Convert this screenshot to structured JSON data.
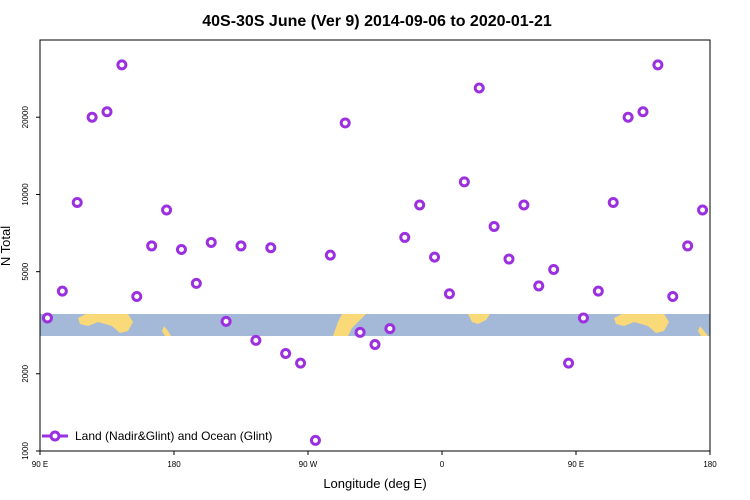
{
  "chart_data": {
    "type": "scatter",
    "title": "40S-30S June (Ver 9)   2014-09-06 to 2020-01-21",
    "xlabel": "Longitude (deg E)",
    "ylabel": "N Total",
    "xlim": [
      90,
      540
    ],
    "ylim": [
      1000,
      40000
    ],
    "yscale": "log",
    "grid": false,
    "x_ticks": [
      {
        "value": 90,
        "label": "90 E"
      },
      {
        "value": 180,
        "label": "180"
      },
      {
        "value": 270,
        "label": "90 W"
      },
      {
        "value": 360,
        "label": "0"
      },
      {
        "value": 450,
        "label": "90 E"
      },
      {
        "value": 540,
        "label": "180"
      }
    ],
    "y_ticks": [
      {
        "value": 1000,
        "label": "1000"
      },
      {
        "value": 2000,
        "label": "2000"
      },
      {
        "value": 5000,
        "label": "5000"
      },
      {
        "value": 10000,
        "label": "10000"
      },
      {
        "value": 20000,
        "label": "20000"
      }
    ],
    "series": [
      {
        "name": "Land (Nadir&Glint) and Ocean (Glint)",
        "color": "#9b30e0",
        "marker": "open-circle",
        "x": [
          95,
          105,
          115,
          125,
          135,
          145,
          155,
          165,
          175,
          185,
          195,
          205,
          215,
          225,
          235,
          245,
          255,
          265,
          275,
          285,
          295,
          305,
          315,
          325,
          335,
          345,
          355,
          365,
          375,
          385,
          395,
          405,
          415,
          425,
          435,
          445,
          455,
          465,
          475,
          485,
          495,
          505,
          515,
          525,
          535
        ],
        "y": [
          3300,
          4200,
          9300,
          20000,
          21000,
          32000,
          4000,
          6300,
          8700,
          6100,
          4500,
          6500,
          3200,
          6300,
          2700,
          6200,
          2400,
          2200,
          1100,
          5800,
          19000,
          2900,
          2600,
          3000,
          6800,
          9100,
          5700,
          4100,
          11200,
          26000,
          7500,
          5600,
          9100,
          4400,
          5100,
          2200,
          3300,
          4200,
          9300,
          20000,
          21000,
          32000,
          4000,
          6300,
          8700
        ]
      }
    ],
    "legend": "bottom-left",
    "background_band": "world map strip (land yellow, ocean blue-gray)"
  },
  "colors": {
    "marker": "#9b30e0",
    "ocean": "#a4b8d8",
    "land": "#fad978"
  }
}
